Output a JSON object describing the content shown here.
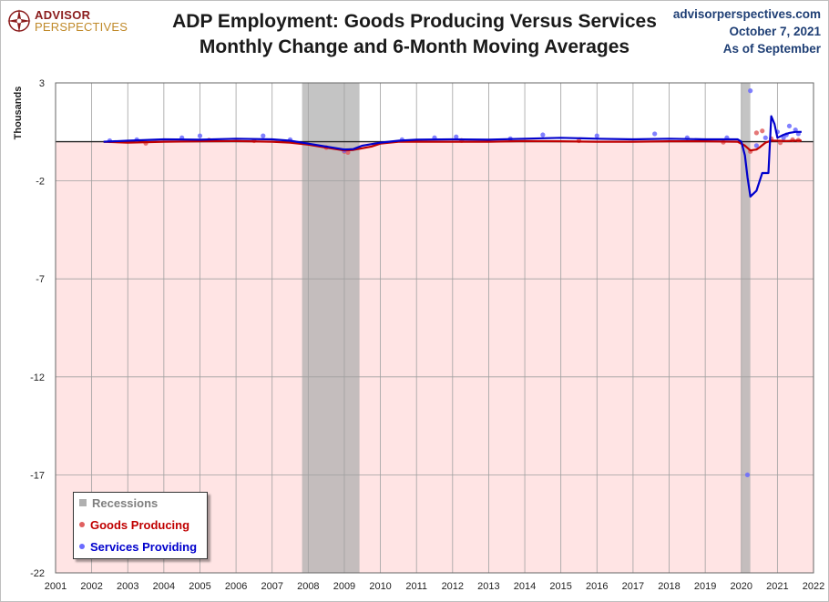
{
  "header": {
    "logo_line1": "ADVISOR",
    "logo_line2": "PERSPECTIVES",
    "title_line1": "ADP Employment: Goods Producing Versus Services",
    "title_line2": "Monthly Change and 6-Month Moving Averages",
    "site": "advisorperspectives.com",
    "date": "October 7, 2021",
    "as_of": "As of September"
  },
  "legend": {
    "recessions": "Recessions",
    "goods": "Goods Producing",
    "services": "Services Providing"
  },
  "colors": {
    "goods": "#c00000",
    "goods_dots": "#e06060",
    "services": "#0000cc",
    "services_dots": "#6b6bff",
    "recession": "#b0b0b0",
    "negative_band": "#ffe4e4",
    "grid": "#a0a0a0",
    "title": "#1a1a1a",
    "info": "#1f3f75"
  },
  "chart_data": {
    "type": "line",
    "title": "ADP Employment: Goods Producing Versus Services",
    "subtitle": "Monthly Change and 6-Month Moving Averages",
    "xlabel": "",
    "ylabel": "Thousands",
    "xlim": [
      2001,
      2022
    ],
    "ylim": [
      -22,
      3
    ],
    "x_ticks": [
      2001,
      2002,
      2003,
      2004,
      2005,
      2006,
      2007,
      2008,
      2009,
      2010,
      2011,
      2012,
      2013,
      2014,
      2015,
      2016,
      2017,
      2018,
      2019,
      2020,
      2021,
      2022
    ],
    "y_ticks": [
      3,
      -2,
      -7,
      -12,
      -17,
      -22
    ],
    "recessions": [
      [
        2007.83,
        2009.42
      ],
      [
        2020.0,
        2020.25
      ]
    ],
    "series": [
      {
        "name": "Goods Producing (6-Month Moving Average)",
        "points": [
          [
            2002.33,
            0.0
          ],
          [
            2003.0,
            -0.05
          ],
          [
            2004.0,
            0.0
          ],
          [
            2005.0,
            0.02
          ],
          [
            2006.0,
            0.03
          ],
          [
            2007.0,
            0.0
          ],
          [
            2007.5,
            -0.05
          ],
          [
            2008.0,
            -0.15
          ],
          [
            2008.5,
            -0.3
          ],
          [
            2009.0,
            -0.45
          ],
          [
            2009.25,
            -0.42
          ],
          [
            2009.75,
            -0.25
          ],
          [
            2010.0,
            -0.1
          ],
          [
            2010.5,
            0.0
          ],
          [
            2011.0,
            0.0
          ],
          [
            2012.0,
            0.0
          ],
          [
            2013.0,
            0.0
          ],
          [
            2014.0,
            0.03
          ],
          [
            2015.0,
            0.02
          ],
          [
            2016.0,
            0.0
          ],
          [
            2017.0,
            0.0
          ],
          [
            2018.0,
            0.02
          ],
          [
            2019.0,
            0.02
          ],
          [
            2019.9,
            0.0
          ],
          [
            2020.1,
            -0.2
          ],
          [
            2020.25,
            -0.45
          ],
          [
            2020.42,
            -0.4
          ],
          [
            2020.5,
            -0.3
          ],
          [
            2020.67,
            -0.05
          ],
          [
            2020.83,
            0.05
          ],
          [
            2021.0,
            0.05
          ],
          [
            2021.25,
            0.03
          ],
          [
            2021.5,
            0.05
          ],
          [
            2021.67,
            0.05
          ]
        ]
      },
      {
        "name": "Services Providing (6-Month Moving Average)",
        "points": [
          [
            2002.33,
            0.0
          ],
          [
            2003.0,
            0.05
          ],
          [
            2004.0,
            0.12
          ],
          [
            2005.0,
            0.1
          ],
          [
            2006.0,
            0.15
          ],
          [
            2007.0,
            0.12
          ],
          [
            2007.5,
            0.05
          ],
          [
            2008.0,
            -0.1
          ],
          [
            2008.5,
            -0.25
          ],
          [
            2009.0,
            -0.4
          ],
          [
            2009.25,
            -0.38
          ],
          [
            2009.5,
            -0.2
          ],
          [
            2010.0,
            -0.05
          ],
          [
            2010.5,
            0.05
          ],
          [
            2011.0,
            0.1
          ],
          [
            2012.0,
            0.12
          ],
          [
            2013.0,
            0.1
          ],
          [
            2014.0,
            0.15
          ],
          [
            2015.0,
            0.2
          ],
          [
            2016.0,
            0.15
          ],
          [
            2017.0,
            0.12
          ],
          [
            2018.0,
            0.15
          ],
          [
            2019.0,
            0.12
          ],
          [
            2019.9,
            0.12
          ],
          [
            2020.0,
            0.0
          ],
          [
            2020.1,
            -0.7
          ],
          [
            2020.17,
            -1.8
          ],
          [
            2020.25,
            -2.8
          ],
          [
            2020.42,
            -2.5
          ],
          [
            2020.58,
            -1.6
          ],
          [
            2020.75,
            -1.6
          ],
          [
            2020.83,
            1.3
          ],
          [
            2020.92,
            0.9
          ],
          [
            2021.0,
            0.2
          ],
          [
            2021.17,
            0.35
          ],
          [
            2021.33,
            0.45
          ],
          [
            2021.5,
            0.5
          ],
          [
            2021.67,
            0.5
          ]
        ]
      },
      {
        "name": "Goods Producing (Monthly Change)",
        "points": [
          [
            2003.5,
            -0.08
          ],
          [
            2005.25,
            0.08
          ],
          [
            2006.5,
            0.05
          ],
          [
            2008.5,
            -0.3
          ],
          [
            2009.0,
            -0.5
          ],
          [
            2009.1,
            -0.55
          ],
          [
            2012.25,
            0.06
          ],
          [
            2015.5,
            0.05
          ],
          [
            2019.5,
            -0.03
          ],
          [
            2020.25,
            -0.5
          ],
          [
            2020.42,
            0.45
          ],
          [
            2020.58,
            0.55
          ],
          [
            2020.83,
            0.15
          ],
          [
            2021.08,
            -0.05
          ],
          [
            2021.42,
            0.1
          ],
          [
            2021.58,
            0.08
          ]
        ]
      },
      {
        "name": "Services Providing (Monthly Change)",
        "points": [
          [
            2002.5,
            0.05
          ],
          [
            2003.25,
            0.1
          ],
          [
            2004.5,
            0.2
          ],
          [
            2005.0,
            0.3
          ],
          [
            2006.75,
            0.3
          ],
          [
            2007.5,
            0.1
          ],
          [
            2009.0,
            -0.45
          ],
          [
            2010.6,
            0.1
          ],
          [
            2011.5,
            0.2
          ],
          [
            2012.1,
            0.25
          ],
          [
            2013.6,
            0.15
          ],
          [
            2014.5,
            0.35
          ],
          [
            2016.0,
            0.3
          ],
          [
            2017.6,
            0.4
          ],
          [
            2018.5,
            0.2
          ],
          [
            2019.6,
            0.2
          ],
          [
            2020.17,
            -17.0
          ],
          [
            2020.25,
            2.6
          ],
          [
            2020.42,
            -0.2
          ],
          [
            2020.67,
            0.2
          ],
          [
            2021.0,
            0.5
          ],
          [
            2021.17,
            0.2
          ],
          [
            2021.25,
            0.35
          ],
          [
            2021.33,
            0.8
          ],
          [
            2021.5,
            0.6
          ],
          [
            2021.58,
            0.4
          ]
        ]
      }
    ]
  }
}
